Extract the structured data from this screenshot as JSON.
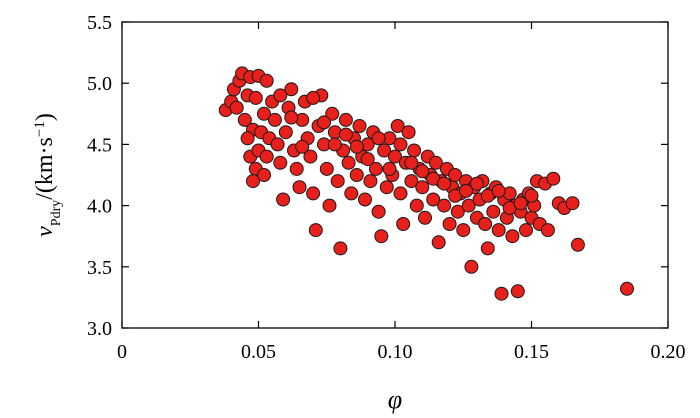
{
  "chart_data": {
    "type": "scatter",
    "title": "",
    "xlabel": "φ",
    "ylabel": {
      "symbol": "v",
      "subscript": "Pdry",
      "unit_prefix": "/(km·s",
      "unit_exponent": "−1",
      "unit_suffix": ")"
    },
    "xlim": [
      0,
      0.2
    ],
    "ylim": [
      3.0,
      5.5
    ],
    "xticks": [
      0,
      0.05,
      0.1,
      0.15,
      0.2
    ],
    "xtick_labels": [
      "0",
      "0.05",
      "0.10",
      "0.15",
      "0.20"
    ],
    "yticks": [
      3.0,
      3.5,
      4.0,
      4.5,
      5.0,
      5.5
    ],
    "ytick_labels": [
      "3.0",
      "3.5",
      "4.0",
      "4.5",
      "5.0",
      "5.5"
    ],
    "grid": false,
    "legend": null,
    "marker_color": "#e8201c",
    "marker_edge_color": "#1a1a1a",
    "points": [
      [
        0.038,
        4.78
      ],
      [
        0.04,
        4.85
      ],
      [
        0.041,
        4.95
      ],
      [
        0.042,
        4.8
      ],
      [
        0.043,
        5.02
      ],
      [
        0.044,
        5.08
      ],
      [
        0.045,
        4.7
      ],
      [
        0.046,
        4.9
      ],
      [
        0.047,
        5.05
      ],
      [
        0.048,
        4.62
      ],
      [
        0.049,
        4.88
      ],
      [
        0.05,
        5.06
      ],
      [
        0.046,
        4.55
      ],
      [
        0.047,
        4.4
      ],
      [
        0.049,
        4.3
      ],
      [
        0.05,
        4.45
      ],
      [
        0.051,
        4.6
      ],
      [
        0.052,
        4.75
      ],
      [
        0.053,
        5.02
      ],
      [
        0.048,
        4.2
      ],
      [
        0.052,
        4.25
      ],
      [
        0.053,
        4.4
      ],
      [
        0.054,
        4.55
      ],
      [
        0.055,
        4.85
      ],
      [
        0.056,
        4.7
      ],
      [
        0.057,
        4.5
      ],
      [
        0.058,
        4.35
      ],
      [
        0.059,
        4.05
      ],
      [
        0.06,
        4.6
      ],
      [
        0.061,
        4.8
      ],
      [
        0.062,
        4.95
      ],
      [
        0.063,
        4.45
      ],
      [
        0.064,
        4.3
      ],
      [
        0.065,
        4.15
      ],
      [
        0.066,
        4.7
      ],
      [
        0.067,
        4.85
      ],
      [
        0.068,
        4.55
      ],
      [
        0.069,
        4.4
      ],
      [
        0.07,
        4.1
      ],
      [
        0.071,
        3.8
      ],
      [
        0.072,
        4.65
      ],
      [
        0.073,
        4.9
      ],
      [
        0.074,
        4.5
      ],
      [
        0.075,
        4.3
      ],
      [
        0.076,
        4.0
      ],
      [
        0.077,
        4.75
      ],
      [
        0.078,
        4.6
      ],
      [
        0.079,
        4.2
      ],
      [
        0.08,
        3.65
      ],
      [
        0.081,
        4.45
      ],
      [
        0.082,
        4.7
      ],
      [
        0.083,
        4.35
      ],
      [
        0.084,
        4.1
      ],
      [
        0.085,
        4.55
      ],
      [
        0.086,
        4.25
      ],
      [
        0.087,
        4.65
      ],
      [
        0.088,
        4.4
      ],
      [
        0.089,
        4.05
      ],
      [
        0.09,
        4.5
      ],
      [
        0.091,
        4.2
      ],
      [
        0.092,
        4.6
      ],
      [
        0.093,
        4.3
      ],
      [
        0.094,
        3.95
      ],
      [
        0.095,
        3.75
      ],
      [
        0.096,
        4.45
      ],
      [
        0.097,
        4.15
      ],
      [
        0.098,
        4.55
      ],
      [
        0.099,
        4.25
      ],
      [
        0.1,
        4.4
      ],
      [
        0.101,
        4.65
      ],
      [
        0.102,
        4.1
      ],
      [
        0.103,
        3.85
      ],
      [
        0.104,
        4.35
      ],
      [
        0.105,
        4.6
      ],
      [
        0.106,
        4.2
      ],
      [
        0.107,
        4.45
      ],
      [
        0.108,
        4.0
      ],
      [
        0.109,
        4.3
      ],
      [
        0.11,
        4.15
      ],
      [
        0.111,
        3.9
      ],
      [
        0.112,
        4.4
      ],
      [
        0.113,
        4.25
      ],
      [
        0.114,
        4.05
      ],
      [
        0.115,
        4.35
      ],
      [
        0.116,
        3.7
      ],
      [
        0.117,
        4.2
      ],
      [
        0.118,
        4.0
      ],
      [
        0.119,
        4.3
      ],
      [
        0.12,
        3.85
      ],
      [
        0.121,
        4.15
      ],
      [
        0.122,
        4.25
      ],
      [
        0.123,
        3.95
      ],
      [
        0.124,
        4.1
      ],
      [
        0.125,
        3.8
      ],
      [
        0.126,
        4.2
      ],
      [
        0.127,
        4.0
      ],
      [
        0.128,
        3.5
      ],
      [
        0.129,
        4.15
      ],
      [
        0.13,
        3.9
      ],
      [
        0.131,
        4.05
      ],
      [
        0.132,
        4.2
      ],
      [
        0.133,
        3.85
      ],
      [
        0.134,
        3.65
      ],
      [
        0.135,
        4.1
      ],
      [
        0.136,
        3.95
      ],
      [
        0.137,
        4.15
      ],
      [
        0.138,
        3.8
      ],
      [
        0.139,
        3.28
      ],
      [
        0.14,
        4.05
      ],
      [
        0.141,
        3.9
      ],
      [
        0.142,
        4.1
      ],
      [
        0.143,
        3.75
      ],
      [
        0.144,
        4.0
      ],
      [
        0.145,
        3.3
      ],
      [
        0.146,
        3.95
      ],
      [
        0.147,
        4.05
      ],
      [
        0.148,
        3.8
      ],
      [
        0.149,
        4.1
      ],
      [
        0.15,
        3.9
      ],
      [
        0.151,
        4.0
      ],
      [
        0.152,
        4.2
      ],
      [
        0.153,
        3.85
      ],
      [
        0.155,
        4.18
      ],
      [
        0.156,
        3.8
      ],
      [
        0.158,
        4.22
      ],
      [
        0.16,
        4.02
      ],
      [
        0.162,
        3.98
      ],
      [
        0.165,
        4.02
      ],
      [
        0.167,
        3.68
      ],
      [
        0.185,
        3.32
      ],
      [
        0.058,
        4.9
      ],
      [
        0.062,
        4.72
      ],
      [
        0.066,
        4.48
      ],
      [
        0.07,
        4.88
      ],
      [
        0.074,
        4.68
      ],
      [
        0.078,
        4.5
      ],
      [
        0.082,
        4.58
      ],
      [
        0.086,
        4.48
      ],
      [
        0.09,
        4.38
      ],
      [
        0.094,
        4.55
      ],
      [
        0.098,
        4.3
      ],
      [
        0.102,
        4.5
      ],
      [
        0.106,
        4.35
      ],
      [
        0.11,
        4.28
      ],
      [
        0.114,
        4.22
      ],
      [
        0.118,
        4.18
      ],
      [
        0.122,
        4.08
      ],
      [
        0.126,
        4.12
      ],
      [
        0.13,
        4.18
      ],
      [
        0.134,
        4.08
      ],
      [
        0.138,
        4.12
      ],
      [
        0.142,
        3.98
      ],
      [
        0.146,
        4.02
      ],
      [
        0.15,
        4.08
      ]
    ]
  }
}
